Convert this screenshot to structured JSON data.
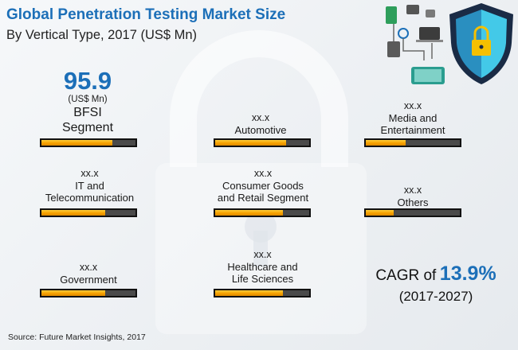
{
  "title": "Global Penetration Testing Market Size",
  "subtitle": "By Vertical Type, 2017 (US$ Mn)",
  "chart_data": {
    "type": "bar",
    "title": "Global Penetration Testing Market Size",
    "subtitle": "By Vertical Type, 2017 (US$ Mn)",
    "categories": [
      "BFSI Segment",
      "Automotive",
      "Media and Entertainment",
      "IT and Telecommunication",
      "Consumer Goods and Retail Segment",
      "Others",
      "Government",
      "Healthcare and Life Sciences"
    ],
    "values": [
      95.9,
      null,
      null,
      null,
      null,
      null,
      null,
      null
    ],
    "value_labels": [
      "95.9",
      "xx.x",
      "xx.x",
      "xx.x",
      "xx.x",
      "xx.x",
      "xx.x",
      "xx.x"
    ],
    "bar_fill_fraction": [
      0.75,
      0.75,
      0.42,
      0.68,
      0.72,
      0.3,
      0.68,
      0.72
    ],
    "unit": "(US$ Mn)"
  },
  "segments": {
    "bfsi": {
      "value": "95.9",
      "unit": "(US$ Mn)",
      "label1": "BFSI",
      "label2": "Segment"
    },
    "automotive": {
      "value": "xx.x",
      "label1": "Automotive"
    },
    "media": {
      "value": "xx.x",
      "label1": "Media and",
      "label2": "Entertainment"
    },
    "it": {
      "value": "xx.x",
      "label1": "IT and",
      "label2": "Telecommunication"
    },
    "consumer": {
      "value": "xx.x",
      "label1": "Consumer Goods",
      "label2": "and Retail Segment"
    },
    "others": {
      "value": "xx.x",
      "label1": "Others"
    },
    "government": {
      "value": "xx.x",
      "label1": "Government"
    },
    "healthcare": {
      "value": "xx.x",
      "label1": "Healthcare and",
      "label2": "Life Sciences"
    }
  },
  "cagr": {
    "prefix": "CAGR of",
    "value": "13.9%",
    "period": "(2017-2027)"
  },
  "source": "Source: Future Market Insights, 2017",
  "colors": {
    "accent": "#1c6fb8",
    "bar_fill": "#f5a000",
    "bar_empty": "#4a4a4a"
  },
  "icons": [
    "security-shield-icon",
    "devices-network-icon"
  ]
}
